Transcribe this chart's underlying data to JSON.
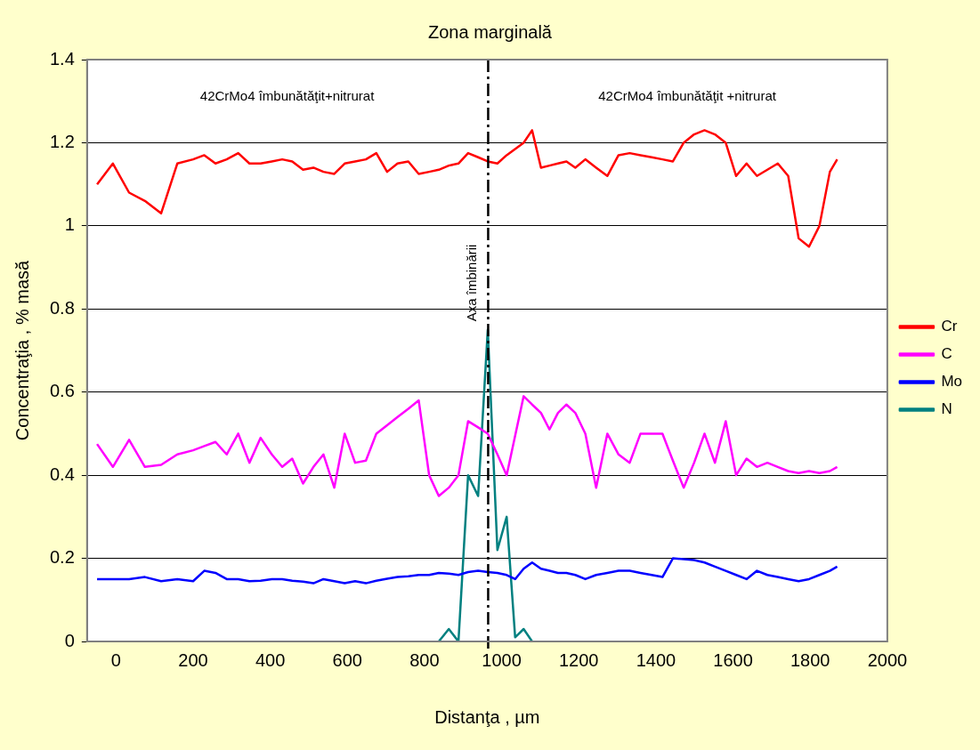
{
  "chart_data": {
    "type": "line",
    "title": "Zona marginală",
    "xlabel": "Distanţa , µm",
    "ylabel": "Concentraţia , % masă",
    "x": [
      -49,
      -8,
      34,
      75,
      117,
      159,
      200,
      229,
      258,
      287,
      317,
      346,
      375,
      404,
      431,
      457,
      485,
      512,
      538,
      566,
      593,
      620,
      648,
      675,
      703,
      730,
      758,
      785,
      812,
      837,
      863,
      888,
      913,
      939,
      964,
      989,
      1013,
      1035,
      1057,
      1079,
      1102,
      1124,
      1146,
      1168,
      1191,
      1217,
      1245,
      1274,
      1303,
      1332,
      1360,
      1389,
      1417,
      1444,
      1472,
      1499,
      1526,
      1553,
      1581,
      1608,
      1635,
      1662,
      1689,
      1716,
      1743,
      1770,
      1797,
      1824,
      1851,
      1870
    ],
    "series": [
      {
        "name": "Cr",
        "color": "#ff0000",
        "values": [
          1.1,
          1.15,
          1.08,
          1.06,
          1.03,
          1.15,
          1.16,
          1.17,
          1.15,
          1.16,
          1.175,
          1.15,
          1.15,
          1.155,
          1.16,
          1.155,
          1.135,
          1.14,
          1.13,
          1.125,
          1.15,
          1.155,
          1.16,
          1.175,
          1.13,
          1.15,
          1.155,
          1.125,
          1.13,
          1.135,
          1.145,
          1.15,
          1.175,
          1.165,
          1.155,
          1.15,
          1.17,
          1.185,
          1.2,
          1.23,
          1.14,
          1.145,
          1.15,
          1.155,
          1.14,
          1.16,
          1.14,
          1.12,
          1.17,
          1.175,
          1.17,
          1.165,
          1.16,
          1.155,
          1.2,
          1.22,
          1.23,
          1.22,
          1.2,
          1.12,
          1.15,
          1.12,
          1.135,
          1.15,
          1.12,
          0.97,
          0.95,
          1.0,
          1.13,
          1.16
        ]
      },
      {
        "name": "C",
        "color": "#ff00ff",
        "values": [
          0.475,
          0.42,
          0.485,
          0.42,
          0.425,
          0.45,
          0.46,
          0.47,
          0.48,
          0.45,
          0.5,
          0.43,
          0.49,
          0.45,
          0.42,
          0.44,
          0.38,
          0.42,
          0.45,
          0.37,
          0.5,
          0.43,
          0.435,
          0.5,
          0.52,
          0.54,
          0.56,
          0.58,
          0.4,
          0.35,
          0.37,
          0.4,
          0.53,
          0.515,
          0.5,
          0.45,
          0.4,
          0.495,
          0.59,
          0.57,
          0.55,
          0.51,
          0.55,
          0.57,
          0.55,
          0.5,
          0.37,
          0.5,
          0.45,
          0.43,
          0.5,
          0.5,
          0.5,
          0.435,
          0.37,
          0.43,
          0.5,
          0.43,
          0.53,
          0.4,
          0.44,
          0.42,
          0.43,
          0.42,
          0.41,
          0.405,
          0.41,
          0.405,
          0.41,
          0.42
        ]
      },
      {
        "name": "Mo",
        "color": "#0000ff",
        "values": [
          0.15,
          0.15,
          0.15,
          0.155,
          0.145,
          0.15,
          0.145,
          0.17,
          0.165,
          0.15,
          0.15,
          0.145,
          0.146,
          0.15,
          0.15,
          0.146,
          0.144,
          0.14,
          0.15,
          0.145,
          0.14,
          0.145,
          0.14,
          0.146,
          0.151,
          0.155,
          0.157,
          0.16,
          0.16,
          0.165,
          0.163,
          0.16,
          0.167,
          0.17,
          0.167,
          0.165,
          0.16,
          0.15,
          0.175,
          0.19,
          0.175,
          0.17,
          0.165,
          0.165,
          0.16,
          0.15,
          0.16,
          0.165,
          0.17,
          0.17,
          0.165,
          0.16,
          0.155,
          0.2,
          0.198,
          0.196,
          0.19,
          0.18,
          0.17,
          0.16,
          0.15,
          0.17,
          0.16,
          0.155,
          0.15,
          0.145,
          0.15,
          0.16,
          0.17,
          0.18
        ]
      },
      {
        "name": "N",
        "color": "#008080",
        "values": [
          null,
          null,
          null,
          null,
          null,
          null,
          null,
          null,
          null,
          null,
          null,
          null,
          null,
          null,
          null,
          null,
          null,
          null,
          null,
          null,
          null,
          null,
          null,
          null,
          null,
          null,
          null,
          null,
          null,
          0,
          0.03,
          0,
          0.4,
          0.35,
          0.75,
          0.22,
          0.3,
          0.01,
          0.03,
          0,
          null,
          null,
          null,
          null,
          null,
          null,
          null,
          null,
          null,
          null,
          null,
          null,
          null,
          null,
          null,
          null,
          null,
          null,
          null,
          null,
          null,
          null,
          null,
          null,
          null,
          null,
          null,
          null,
          null,
          null
        ]
      }
    ],
    "xlim": [
      -75,
      2000
    ],
    "xticks": [
      0,
      200,
      400,
      600,
      800,
      1000,
      1200,
      1400,
      1600,
      1800,
      2000
    ],
    "ylim": [
      0,
      1.4
    ],
    "yticks": [
      0,
      0.2,
      0.4,
      0.6,
      0.8,
      1,
      1.2,
      1.4
    ],
    "grid": "y",
    "legend": "right",
    "marker": "none",
    "ref_lines": [
      {
        "axis": "x",
        "value": 965,
        "label": "Axa îmbinării",
        "color": "#000000"
      }
    ],
    "annotations": [
      "42CrMo4 îmbunătăţit+nitrurat",
      "42CrMo4 îmbunătăţit +nitrurat"
    ]
  }
}
